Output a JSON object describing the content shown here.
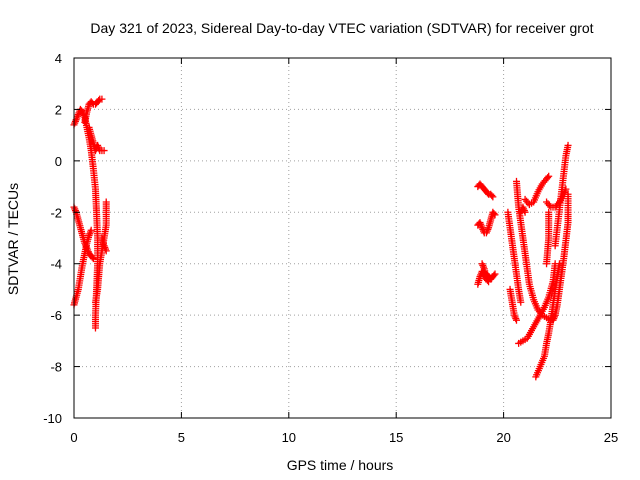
{
  "chart_data": {
    "type": "scatter",
    "title": "Day 321 of 2023, Sidereal Day-to-day VTEC variation (SDTVAR) for receiver grot",
    "xlabel": "GPS time / hours",
    "ylabel": "SDTVAR / TECUs",
    "xlim": [
      0,
      25
    ],
    "ylim": [
      -10,
      4
    ],
    "xticks": [
      0,
      5,
      10,
      15,
      20,
      25
    ],
    "yticks": [
      4,
      2,
      0,
      -2,
      -4,
      -6,
      -8,
      -10
    ],
    "grid": true,
    "marker": "plus",
    "color": "#ff0000",
    "tracks": [
      [
        [
          0.0,
          1.4
        ],
        [
          0.1,
          1.6
        ],
        [
          0.2,
          1.8
        ],
        [
          0.3,
          2.0
        ],
        [
          0.4,
          1.9
        ],
        [
          0.5,
          1.7
        ],
        [
          0.6,
          1.3
        ],
        [
          0.7,
          0.9
        ],
        [
          0.8,
          0.4
        ],
        [
          0.9,
          -0.3
        ],
        [
          1.0,
          -1.1
        ],
        [
          1.05,
          -2.0
        ],
        [
          1.1,
          -3.0
        ],
        [
          1.1,
          -4.0
        ],
        [
          1.05,
          -5.0
        ],
        [
          1.0,
          -6.0
        ],
        [
          1.0,
          -6.5
        ]
      ],
      [
        [
          0.0,
          -1.8
        ],
        [
          0.1,
          -2.0
        ],
        [
          0.2,
          -2.3
        ],
        [
          0.3,
          -2.6
        ],
        [
          0.4,
          -2.9
        ],
        [
          0.5,
          -3.2
        ],
        [
          0.6,
          -3.4
        ],
        [
          0.7,
          -3.6
        ],
        [
          0.8,
          -3.7
        ],
        [
          0.9,
          -3.8
        ]
      ],
      [
        [
          0.0,
          -5.6
        ],
        [
          0.1,
          -5.3
        ],
        [
          0.2,
          -5.0
        ],
        [
          0.3,
          -4.5
        ],
        [
          0.4,
          -4.0
        ],
        [
          0.5,
          -3.6
        ],
        [
          0.6,
          -3.2
        ],
        [
          0.7,
          -2.9
        ],
        [
          0.8,
          -2.7
        ]
      ],
      [
        [
          0.5,
          1.5
        ],
        [
          0.6,
          1.9
        ],
        [
          0.7,
          2.2
        ],
        [
          0.8,
          2.3
        ],
        [
          0.9,
          2.2
        ],
        [
          1.0,
          2.2
        ],
        [
          1.1,
          2.3
        ],
        [
          1.2,
          2.4
        ],
        [
          1.3,
          2.4
        ]
      ],
      [
        [
          0.7,
          1.3
        ],
        [
          0.8,
          1.0
        ],
        [
          0.9,
          0.7
        ],
        [
          1.0,
          0.4
        ],
        [
          1.1,
          0.6
        ],
        [
          1.2,
          0.4
        ],
        [
          1.3,
          0.4
        ],
        [
          1.4,
          0.4
        ]
      ],
      [
        [
          1.0,
          -5.5
        ],
        [
          1.1,
          -5.0
        ],
        [
          1.15,
          -4.5
        ],
        [
          1.2,
          -4.0
        ],
        [
          1.3,
          -3.5
        ],
        [
          1.4,
          -3.0
        ],
        [
          1.5,
          -2.5
        ],
        [
          1.5,
          -2.0
        ],
        [
          1.5,
          -1.6
        ]
      ],
      [
        [
          1.3,
          -3.0
        ],
        [
          1.4,
          -3.3
        ],
        [
          1.5,
          -3.5
        ]
      ],
      [
        [
          18.8,
          -1.0
        ],
        [
          18.9,
          -0.9
        ],
        [
          19.0,
          -1.0
        ],
        [
          19.1,
          -1.1
        ],
        [
          19.2,
          -1.2
        ],
        [
          19.3,
          -1.3
        ],
        [
          19.4,
          -1.3
        ],
        [
          19.5,
          -1.4
        ]
      ],
      [
        [
          18.8,
          -2.5
        ],
        [
          18.9,
          -2.4
        ],
        [
          19.0,
          -2.6
        ],
        [
          19.1,
          -2.8
        ],
        [
          19.2,
          -2.8
        ],
        [
          19.3,
          -2.6
        ],
        [
          19.4,
          -2.3
        ],
        [
          19.5,
          -2.0
        ],
        [
          19.6,
          -2.1
        ]
      ],
      [
        [
          18.8,
          -4.8
        ],
        [
          18.9,
          -4.5
        ],
        [
          19.0,
          -4.3
        ],
        [
          19.1,
          -4.5
        ],
        [
          19.2,
          -4.4
        ],
        [
          19.3,
          -4.5
        ],
        [
          19.4,
          -4.6
        ],
        [
          19.5,
          -4.5
        ],
        [
          19.6,
          -4.4
        ]
      ],
      [
        [
          19.0,
          -4.0
        ],
        [
          19.1,
          -4.2
        ],
        [
          19.2,
          -4.6
        ],
        [
          19.3,
          -4.7
        ]
      ],
      [
        [
          20.2,
          -2.0
        ],
        [
          20.3,
          -2.6
        ],
        [
          20.4,
          -3.2
        ],
        [
          20.5,
          -3.8
        ],
        [
          20.6,
          -4.4
        ],
        [
          20.7,
          -5.0
        ],
        [
          20.8,
          -5.5
        ]
      ],
      [
        [
          20.3,
          -5.0
        ],
        [
          20.4,
          -5.5
        ],
        [
          20.5,
          -6.0
        ],
        [
          20.6,
          -6.2
        ]
      ],
      [
        [
          20.6,
          -0.8
        ],
        [
          20.65,
          -1.3
        ],
        [
          20.7,
          -1.8
        ],
        [
          20.8,
          -2.4
        ],
        [
          20.9,
          -3.0
        ],
        [
          21.0,
          -3.6
        ],
        [
          21.1,
          -4.2
        ],
        [
          21.2,
          -4.8
        ],
        [
          21.4,
          -5.4
        ],
        [
          21.6,
          -5.8
        ],
        [
          21.8,
          -6.0
        ],
        [
          22.0,
          -6.1
        ],
        [
          22.2,
          -6.2
        ],
        [
          22.4,
          -6.0
        ]
      ],
      [
        [
          21.0,
          -1.5
        ],
        [
          21.2,
          -1.7
        ],
        [
          21.4,
          -1.6
        ],
        [
          21.6,
          -1.2
        ],
        [
          21.8,
          -0.9
        ],
        [
          22.0,
          -0.7
        ],
        [
          22.1,
          -0.6
        ]
      ],
      [
        [
          20.8,
          -2.0
        ],
        [
          20.9,
          -1.8
        ],
        [
          21.0,
          -2.0
        ]
      ],
      [
        [
          20.7,
          -7.1
        ],
        [
          20.9,
          -7.0
        ],
        [
          21.1,
          -6.9
        ],
        [
          21.3,
          -6.6
        ],
        [
          21.5,
          -6.3
        ],
        [
          21.7,
          -6.0
        ],
        [
          21.9,
          -5.7
        ],
        [
          22.1,
          -5.3
        ],
        [
          22.3,
          -4.7
        ],
        [
          22.4,
          -4.0
        ]
      ],
      [
        [
          21.5,
          -8.4
        ],
        [
          21.7,
          -8.0
        ],
        [
          21.9,
          -7.6
        ],
        [
          22.0,
          -7.1
        ],
        [
          22.1,
          -6.7
        ],
        [
          22.2,
          -6.2
        ],
        [
          22.3,
          -5.6
        ],
        [
          22.4,
          -5.0
        ],
        [
          22.5,
          -4.5
        ],
        [
          22.6,
          -4.0
        ]
      ],
      [
        [
          22.0,
          -1.6
        ],
        [
          22.2,
          -1.8
        ],
        [
          22.4,
          -1.8
        ],
        [
          22.6,
          -1.6
        ],
        [
          22.8,
          -1.3
        ],
        [
          22.9,
          -1.1
        ]
      ],
      [
        [
          22.4,
          -3.3
        ],
        [
          22.5,
          -2.6
        ],
        [
          22.6,
          -1.9
        ],
        [
          22.7,
          -1.2
        ],
        [
          22.8,
          -0.5
        ],
        [
          22.9,
          0.2
        ],
        [
          23.0,
          0.6
        ]
      ],
      [
        [
          22.3,
          -6.2
        ],
        [
          22.4,
          -6.0
        ],
        [
          22.5,
          -5.6
        ],
        [
          22.6,
          -5.0
        ],
        [
          22.7,
          -4.4
        ],
        [
          22.8,
          -3.8
        ],
        [
          22.9,
          -3.1
        ],
        [
          23.0,
          -2.4
        ],
        [
          23.0,
          -2.0
        ],
        [
          23.0,
          -1.3
        ]
      ],
      [
        [
          22.0,
          -4.0
        ],
        [
          22.1,
          -3.0
        ],
        [
          22.1,
          -2.0
        ]
      ]
    ]
  }
}
